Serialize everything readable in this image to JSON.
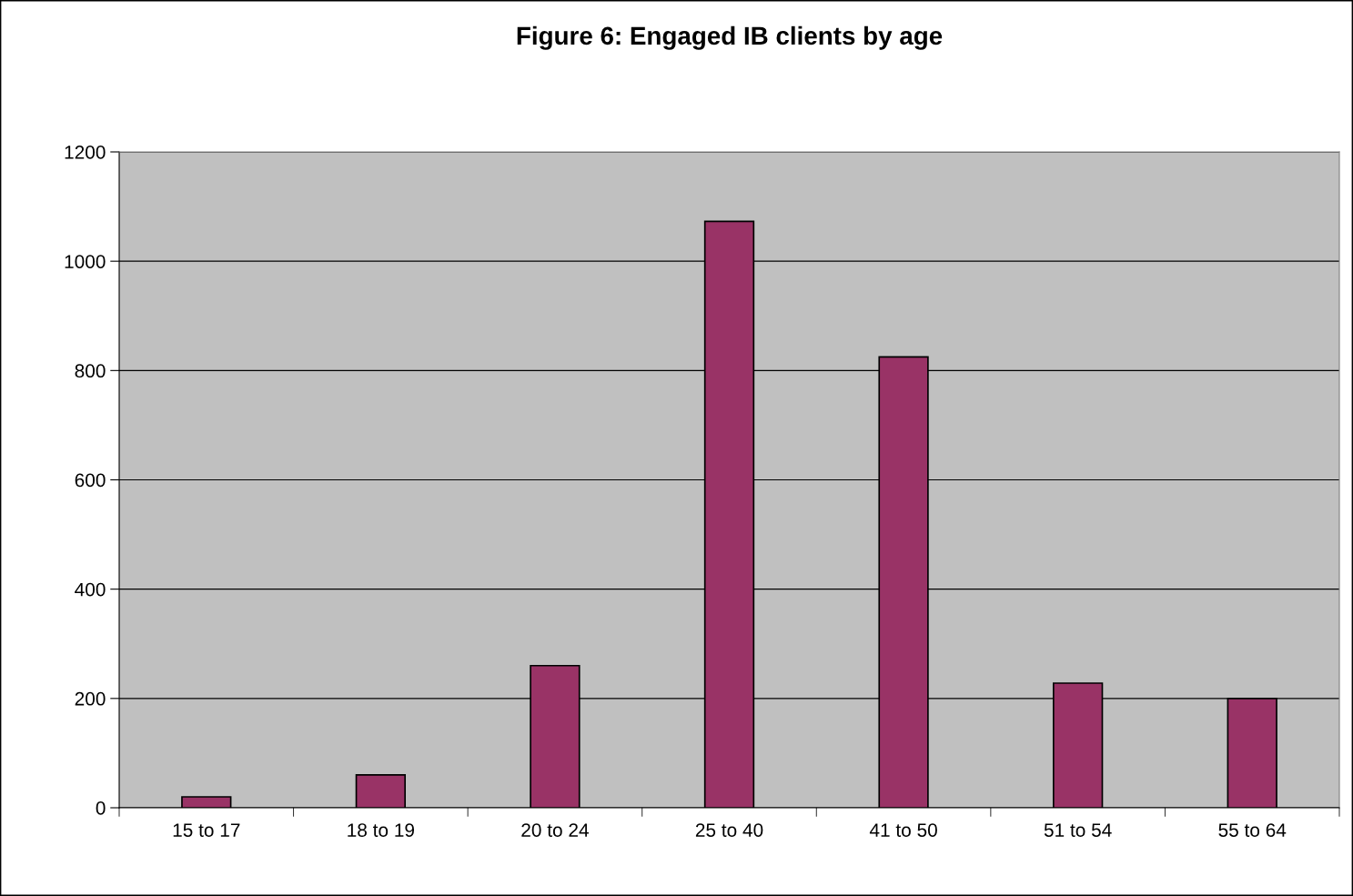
{
  "chart_data": {
    "type": "bar",
    "title": "Figure 6: Engaged IB clients by age",
    "categories": [
      "15 to 17",
      "18 to 19",
      "20 to 24",
      "25 to 40",
      "41 to 50",
      "51 to 54",
      "55 to 64"
    ],
    "values": [
      20,
      60,
      260,
      1073,
      825,
      228,
      200
    ],
    "color": "#993366",
    "ylim": [
      0,
      1200
    ],
    "yticks": [
      0,
      200,
      400,
      600,
      800,
      1000,
      1200
    ],
    "grid": "y",
    "legend": false
  }
}
